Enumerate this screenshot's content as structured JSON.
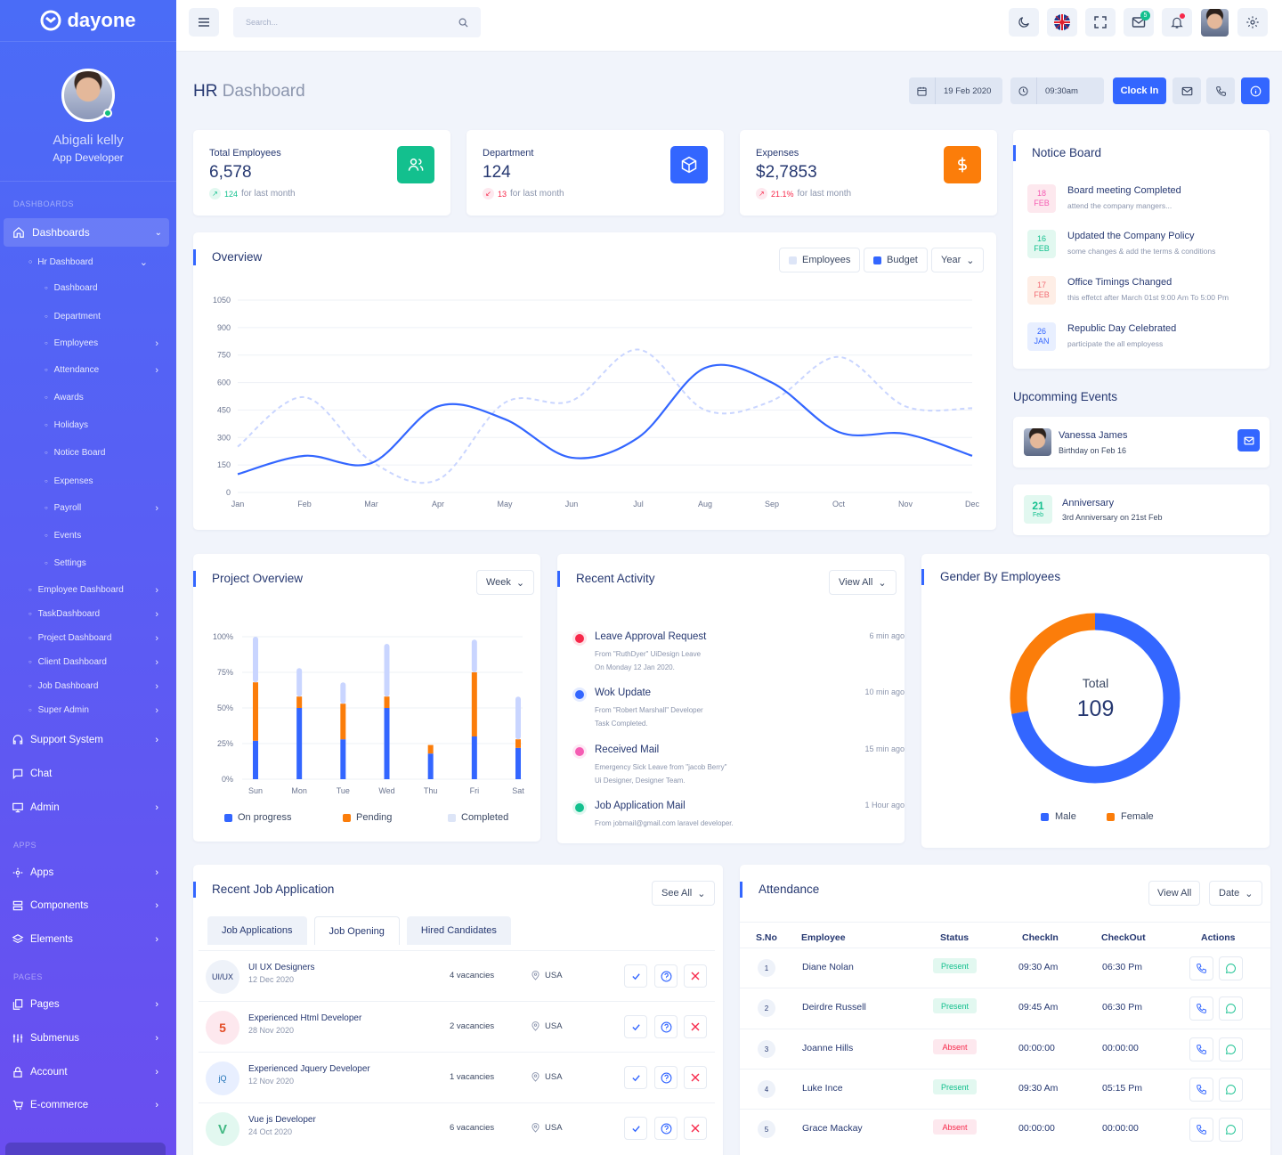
{
  "brand": "dayone",
  "profile": {
    "name": "Abigali kelly",
    "role": "App Developer"
  },
  "sidebar": {
    "cat_dashboards": "DASHBOARDS",
    "cat_apps": "APPS",
    "cat_pages": "PAGES",
    "dashboards": "Dashboards",
    "hr_dashboard": "Hr Dashboard",
    "sub": [
      "Dashboard",
      "Department",
      "Employees",
      "Attendance",
      "Awards",
      "Holidays",
      "Notice Board",
      "Expenses",
      "Payroll",
      "Events",
      "Settings"
    ],
    "dash_items": [
      "Employee Dashboard",
      "TaskDashboard",
      "Project Dashboard",
      "Client Dashboard",
      "Job Dashboard",
      "Super Admin"
    ],
    "main1": [
      "Support System",
      "Chat",
      "Admin"
    ],
    "apps": [
      "Apps",
      "Components",
      "Elements"
    ],
    "pages": [
      "Pages",
      "Submenus",
      "Account",
      "E-commerce"
    ]
  },
  "header": {
    "search_placeholder": "Search...",
    "mail_count": "5"
  },
  "page": {
    "title_strong": "HR",
    "title_light": "Dashboard",
    "date": "19 Feb 2020",
    "time": "09:30am",
    "clock_in": "Clock In"
  },
  "stats": [
    {
      "label": "Total Employees",
      "value": "6,578",
      "delta": "124",
      "note": "for last month",
      "color": "#13c08e"
    },
    {
      "label": "Department",
      "value": "124",
      "delta": "13",
      "note": "for last month",
      "color": "#3366ff"
    },
    {
      "label": "Expenses",
      "value": "$2,7853",
      "delta": "21.1%",
      "note": "for last month",
      "color": "#fb7d0a"
    }
  ],
  "overview": {
    "title": "Overview",
    "legend_employees": "Employees",
    "legend_budget": "Budget",
    "year": "Year"
  },
  "chart_data": [
    {
      "type": "line",
      "x": [
        "Jan",
        "Feb",
        "Mar",
        "Apr",
        "May",
        "Jun",
        "Jul",
        "Aug",
        "Sep",
        "Oct",
        "Nov",
        "Dec"
      ],
      "ylim": [
        0,
        1050
      ],
      "yticks": [
        0,
        150,
        300,
        450,
        600,
        750,
        900,
        1050
      ],
      "series": [
        {
          "name": "Budget",
          "values": [
            100,
            200,
            160,
            470,
            400,
            190,
            300,
            680,
            600,
            330,
            320,
            200
          ],
          "color": "#3366ff"
        },
        {
          "name": "Employees",
          "values": [
            250,
            520,
            170,
            70,
            490,
            500,
            780,
            450,
            500,
            740,
            470,
            460
          ],
          "color": "#c9d5ff"
        }
      ]
    },
    {
      "type": "bar",
      "categories": [
        "Sun",
        "Mon",
        "Tue",
        "Wed",
        "Thu",
        "Fri",
        "Sat"
      ],
      "ylim": [
        0,
        100
      ],
      "yticks": [
        "0%",
        "25%",
        "50%",
        "75%",
        "100%"
      ],
      "series": [
        {
          "name": "On progress",
          "values": [
            27,
            50,
            28,
            50,
            18,
            30,
            22
          ],
          "color": "#3366ff"
        },
        {
          "name": "Pending",
          "values": [
            41,
            8,
            25,
            8,
            6,
            45,
            6
          ],
          "color": "#fb7d0a"
        },
        {
          "name": "Completed",
          "values": [
            32,
            20,
            15,
            37,
            0,
            23,
            30
          ],
          "color": "#c9d5ff"
        }
      ]
    },
    {
      "type": "pie",
      "categories": [
        "Male",
        "Female"
      ],
      "values": [
        72,
        28
      ],
      "colors": [
        "#3366ff",
        "#fb7d0a"
      ],
      "center_label": "Total",
      "center_value": "109"
    }
  ],
  "project": {
    "title": "Project Overview",
    "period": "Week",
    "legend": [
      "On progress",
      "Pending",
      "Completed"
    ]
  },
  "activity": {
    "title": "Recent Activity",
    "view_all": "View All",
    "items": [
      {
        "title": "Leave Approval Request",
        "time": "6 min ago",
        "line1": "From \"RuthDyer\" UiDesign Leave",
        "line2": "On Monday 12 Jan 2020.",
        "color": "#f7284a"
      },
      {
        "title": "Wok Update",
        "time": "10 min ago",
        "line1": "From \"Robert Marshall\" Developer",
        "line2": "Task Completed.",
        "color": "#3366ff"
      },
      {
        "title": "Received Mail",
        "time": "15 min ago",
        "line1": "Emergency Sick Leave from \"jacob Berry\"",
        "line2": "Ui Designer, Designer Team.",
        "color": "#f55db3"
      },
      {
        "title": "Job Application Mail",
        "time": "1 Hour ago",
        "line1": "From jobmail@gmail.com laravel developer.",
        "line2": "",
        "color": "#13c08e"
      }
    ]
  },
  "gender": {
    "title": "Gender By Employees",
    "male": "Male",
    "female": "Female"
  },
  "notice": {
    "title": "Notice Board",
    "items": [
      {
        "day": "18",
        "mon": "FEB",
        "title": "Board meeting Completed",
        "sub": "attend the company mangers...",
        "bg": "#fde8ee",
        "fg": "#f55db3"
      },
      {
        "day": "16",
        "mon": "FEB",
        "title": "Updated the Company Policy",
        "sub": "some changes & add the terms & conditions",
        "bg": "#e2f8f0",
        "fg": "#13c08e"
      },
      {
        "day": "17",
        "mon": "FEB",
        "title": "Office Timings Changed",
        "sub": "this effetct after March 01st 9:00 Am To 5:00 Pm",
        "bg": "#feeee6",
        "fg": "#f16d75"
      },
      {
        "day": "26",
        "mon": "JAN",
        "title": "Republic Day Celebrated",
        "sub": "participate the all employess",
        "bg": "#e8efff",
        "fg": "#3366ff"
      }
    ]
  },
  "events": {
    "title": "Upcomming Events",
    "birthday_name": "Vanessa James",
    "birthday_sub": "Birthday on Feb 16",
    "ann_day": "21",
    "ann_mon": "Feb",
    "ann_title": "Anniversary",
    "ann_sub": "3rd Anniversary on 21st Feb"
  },
  "jobs": {
    "title": "Recent Job Application",
    "see_all": "See All",
    "tabs": [
      "Job Applications",
      "Job Opening",
      "Hired Candidates"
    ],
    "rows": [
      {
        "logo": "UI/UX",
        "title": "UI UX Designers",
        "date": "12 Dec 2020",
        "vac": "4 vacancies",
        "loc": "USA"
      },
      {
        "logo": "5",
        "title": "Experienced Html Developer",
        "date": "28 Nov 2020",
        "vac": "2 vacancies",
        "loc": "USA"
      },
      {
        "logo": "jQ",
        "title": "Experienced Jquery Developer",
        "date": "12 Nov 2020",
        "vac": "1 vacancies",
        "loc": "USA"
      },
      {
        "logo": "V",
        "title": "Vue js Developer",
        "date": "24 Oct 2020",
        "vac": "6 vacancies",
        "loc": "USA"
      }
    ]
  },
  "attendance": {
    "title": "Attendance",
    "view_all": "View All",
    "date": "Date",
    "headers": [
      "S.No",
      "Employee",
      "Status",
      "CheckIn",
      "CheckOut",
      "Actions"
    ],
    "rows": [
      {
        "no": "1",
        "name": "Diane Nolan",
        "status": "Present",
        "in": "09:30 Am",
        "out": "06:30 Pm"
      },
      {
        "no": "2",
        "name": "Deirdre Russell",
        "status": "Present",
        "in": "09:45 Am",
        "out": "06:30 Pm"
      },
      {
        "no": "3",
        "name": "Joanne Hills",
        "status": "Absent",
        "in": "00:00:00",
        "out": "00:00:00"
      },
      {
        "no": "4",
        "name": "Luke Ince",
        "status": "Present",
        "in": "09:30 Am",
        "out": "05:15 Pm"
      },
      {
        "no": "5",
        "name": "Grace Mackay",
        "status": "Absent",
        "in": "00:00:00",
        "out": "00:00:00"
      }
    ]
  }
}
